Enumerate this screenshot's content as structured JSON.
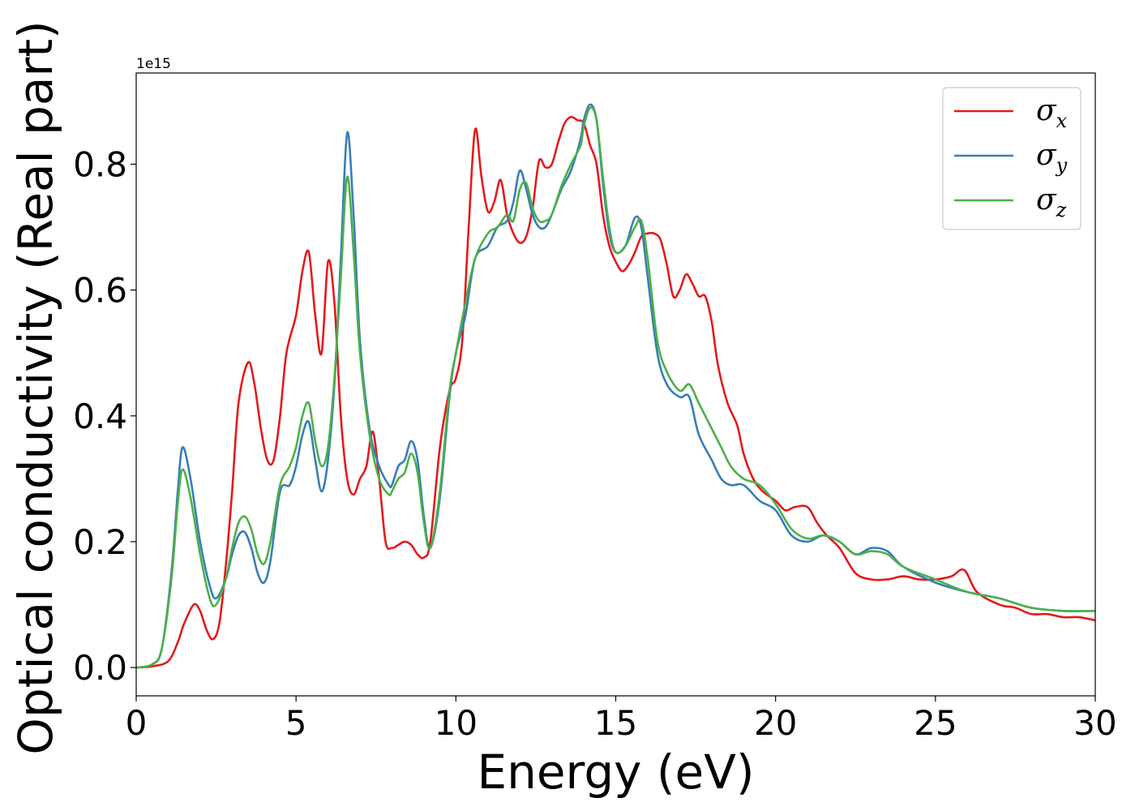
{
  "chart_data": {
    "type": "line",
    "xlabel": "Energy (eV)",
    "ylabel": "Optical conductivity (Real part)",
    "y_offset_label": "1e15",
    "y_scale": 1000000000000000.0,
    "xlim": [
      0,
      30
    ],
    "ylim": [
      -0.045,
      0.945
    ],
    "x_ticks": [
      0,
      5,
      10,
      15,
      20,
      25,
      30
    ],
    "x_tick_labels": [
      "0",
      "5",
      "10",
      "15",
      "20",
      "25",
      "30"
    ],
    "y_ticks": [
      0.0,
      0.2,
      0.4,
      0.6,
      0.8
    ],
    "y_tick_labels": [
      "0.0",
      "0.2",
      "0.4",
      "0.6",
      "0.8"
    ],
    "grid": false,
    "legend_position": "top-right",
    "series": [
      {
        "name": "σx",
        "symbol": "σ",
        "subscript": "x",
        "color": "#e41a1c",
        "x": [
          0,
          0.5,
          1.0,
          1.3,
          1.5,
          1.8,
          2.0,
          2.2,
          2.4,
          2.6,
          2.8,
          3.0,
          3.2,
          3.5,
          3.7,
          3.9,
          4.1,
          4.3,
          4.5,
          4.7,
          5.0,
          5.2,
          5.4,
          5.6,
          5.8,
          6.0,
          6.2,
          6.4,
          6.6,
          6.8,
          7.0,
          7.2,
          7.4,
          7.6,
          7.8,
          8.0,
          8.2,
          8.4,
          8.6,
          8.8,
          9.0,
          9.2,
          9.5,
          9.8,
          10.0,
          10.2,
          10.4,
          10.6,
          10.8,
          11.0,
          11.2,
          11.4,
          11.6,
          11.8,
          12.0,
          12.2,
          12.4,
          12.6,
          12.8,
          13.0,
          13.2,
          13.4,
          13.6,
          13.8,
          14.0,
          14.2,
          14.4,
          14.6,
          14.8,
          15.0,
          15.2,
          15.4,
          15.6,
          15.8,
          16.0,
          16.2,
          16.4,
          16.6,
          16.8,
          17.0,
          17.2,
          17.4,
          17.6,
          17.8,
          18.0,
          18.2,
          18.5,
          18.8,
          19.0,
          19.3,
          19.6,
          20.0,
          20.3,
          20.6,
          21.0,
          21.3,
          21.6,
          22.0,
          22.5,
          23.0,
          23.5,
          24.0,
          24.5,
          25.0,
          25.5,
          25.9,
          26.3,
          27.0,
          27.5,
          28.0,
          28.5,
          29.0,
          29.5,
          30.0
        ],
        "y": [
          0.0,
          0.002,
          0.01,
          0.04,
          0.07,
          0.1,
          0.09,
          0.06,
          0.045,
          0.07,
          0.16,
          0.28,
          0.42,
          0.485,
          0.45,
          0.38,
          0.33,
          0.33,
          0.4,
          0.5,
          0.56,
          0.63,
          0.66,
          0.56,
          0.5,
          0.645,
          0.58,
          0.4,
          0.3,
          0.275,
          0.3,
          0.32,
          0.375,
          0.3,
          0.2,
          0.19,
          0.195,
          0.2,
          0.195,
          0.18,
          0.175,
          0.2,
          0.35,
          0.44,
          0.46,
          0.52,
          0.7,
          0.855,
          0.78,
          0.725,
          0.74,
          0.775,
          0.72,
          0.69,
          0.675,
          0.685,
          0.73,
          0.805,
          0.795,
          0.8,
          0.835,
          0.865,
          0.875,
          0.87,
          0.865,
          0.83,
          0.8,
          0.72,
          0.67,
          0.645,
          0.63,
          0.64,
          0.66,
          0.685,
          0.69,
          0.69,
          0.68,
          0.64,
          0.59,
          0.6,
          0.625,
          0.61,
          0.59,
          0.59,
          0.55,
          0.48,
          0.42,
          0.385,
          0.34,
          0.3,
          0.28,
          0.265,
          0.25,
          0.255,
          0.255,
          0.23,
          0.21,
          0.19,
          0.15,
          0.14,
          0.14,
          0.145,
          0.14,
          0.14,
          0.145,
          0.155,
          0.12,
          0.1,
          0.095,
          0.085,
          0.085,
          0.08,
          0.08,
          0.075
        ]
      },
      {
        "name": "σy",
        "symbol": "σ",
        "subscript": "y",
        "color": "#377eb8",
        "x": [
          0,
          0.5,
          0.8,
          1.1,
          1.3,
          1.45,
          1.7,
          2.0,
          2.3,
          2.5,
          2.8,
          3.0,
          3.2,
          3.4,
          3.6,
          3.8,
          4.0,
          4.2,
          4.5,
          4.8,
          5.0,
          5.2,
          5.4,
          5.6,
          5.8,
          6.0,
          6.2,
          6.4,
          6.6,
          6.8,
          7.0,
          7.3,
          7.6,
          7.9,
          8.0,
          8.2,
          8.4,
          8.6,
          8.8,
          9.0,
          9.2,
          9.5,
          9.8,
          10.0,
          10.3,
          10.6,
          11.0,
          11.3,
          11.6,
          11.8,
          12.0,
          12.2,
          12.4,
          12.6,
          12.8,
          13.0,
          13.3,
          13.6,
          13.9,
          14.0,
          14.2,
          14.4,
          14.6,
          14.8,
          15.0,
          15.3,
          15.6,
          15.8,
          16.0,
          16.3,
          16.6,
          17.0,
          17.3,
          17.6,
          18.0,
          18.3,
          18.6,
          19.0,
          19.5,
          20.0,
          20.5,
          21.0,
          21.5,
          22.0,
          22.5,
          23.0,
          23.5,
          24.0,
          25.0,
          26.0,
          27.0,
          28.0,
          29.0,
          30.0
        ],
        "y": [
          0.0,
          0.005,
          0.03,
          0.15,
          0.28,
          0.35,
          0.3,
          0.2,
          0.13,
          0.11,
          0.14,
          0.18,
          0.21,
          0.215,
          0.19,
          0.15,
          0.135,
          0.17,
          0.28,
          0.29,
          0.32,
          0.37,
          0.39,
          0.33,
          0.28,
          0.33,
          0.45,
          0.65,
          0.85,
          0.72,
          0.52,
          0.38,
          0.32,
          0.29,
          0.29,
          0.32,
          0.33,
          0.36,
          0.33,
          0.24,
          0.19,
          0.27,
          0.43,
          0.5,
          0.56,
          0.65,
          0.67,
          0.7,
          0.71,
          0.74,
          0.79,
          0.76,
          0.72,
          0.7,
          0.7,
          0.72,
          0.76,
          0.79,
          0.84,
          0.87,
          0.895,
          0.87,
          0.77,
          0.69,
          0.66,
          0.67,
          0.715,
          0.7,
          0.62,
          0.5,
          0.45,
          0.43,
          0.43,
          0.37,
          0.33,
          0.3,
          0.29,
          0.29,
          0.265,
          0.25,
          0.21,
          0.2,
          0.21,
          0.2,
          0.18,
          0.19,
          0.185,
          0.16,
          0.135,
          0.12,
          0.11,
          0.095,
          0.09,
          0.09
        ]
      },
      {
        "name": "σz",
        "symbol": "σ",
        "subscript": "z",
        "color": "#4daf4a",
        "x": [
          0,
          0.5,
          0.8,
          1.1,
          1.3,
          1.45,
          1.7,
          2.0,
          2.3,
          2.5,
          2.8,
          3.0,
          3.2,
          3.4,
          3.6,
          3.8,
          4.0,
          4.2,
          4.5,
          4.8,
          5.0,
          5.2,
          5.4,
          5.6,
          5.8,
          6.0,
          6.2,
          6.4,
          6.6,
          6.8,
          7.0,
          7.3,
          7.6,
          7.9,
          8.0,
          8.2,
          8.4,
          8.6,
          8.8,
          9.0,
          9.2,
          9.5,
          9.8,
          10.0,
          10.3,
          10.6,
          11.0,
          11.3,
          11.6,
          11.8,
          12.0,
          12.2,
          12.4,
          12.6,
          12.8,
          13.0,
          13.3,
          13.6,
          13.9,
          14.0,
          14.2,
          14.4,
          14.6,
          14.8,
          15.0,
          15.3,
          15.6,
          15.8,
          16.0,
          16.3,
          16.6,
          17.0,
          17.3,
          17.6,
          18.0,
          18.3,
          18.6,
          19.0,
          19.5,
          20.0,
          20.5,
          21.0,
          21.5,
          22.0,
          22.5,
          23.0,
          23.5,
          24.0,
          25.0,
          26.0,
          27.0,
          28.0,
          29.0,
          30.0
        ],
        "y": [
          0.0,
          0.005,
          0.03,
          0.14,
          0.26,
          0.315,
          0.27,
          0.18,
          0.11,
          0.1,
          0.14,
          0.19,
          0.23,
          0.24,
          0.22,
          0.18,
          0.165,
          0.2,
          0.29,
          0.32,
          0.35,
          0.4,
          0.42,
          0.36,
          0.32,
          0.35,
          0.46,
          0.62,
          0.78,
          0.66,
          0.5,
          0.37,
          0.3,
          0.275,
          0.28,
          0.3,
          0.31,
          0.34,
          0.31,
          0.23,
          0.19,
          0.28,
          0.44,
          0.5,
          0.58,
          0.65,
          0.69,
          0.7,
          0.72,
          0.71,
          0.76,
          0.77,
          0.73,
          0.71,
          0.71,
          0.72,
          0.765,
          0.8,
          0.83,
          0.86,
          0.89,
          0.87,
          0.78,
          0.7,
          0.66,
          0.67,
          0.7,
          0.71,
          0.65,
          0.52,
          0.47,
          0.44,
          0.45,
          0.42,
          0.38,
          0.35,
          0.32,
          0.3,
          0.29,
          0.26,
          0.22,
          0.205,
          0.21,
          0.2,
          0.18,
          0.185,
          0.18,
          0.16,
          0.14,
          0.12,
          0.11,
          0.095,
          0.09,
          0.09
        ]
      }
    ]
  }
}
